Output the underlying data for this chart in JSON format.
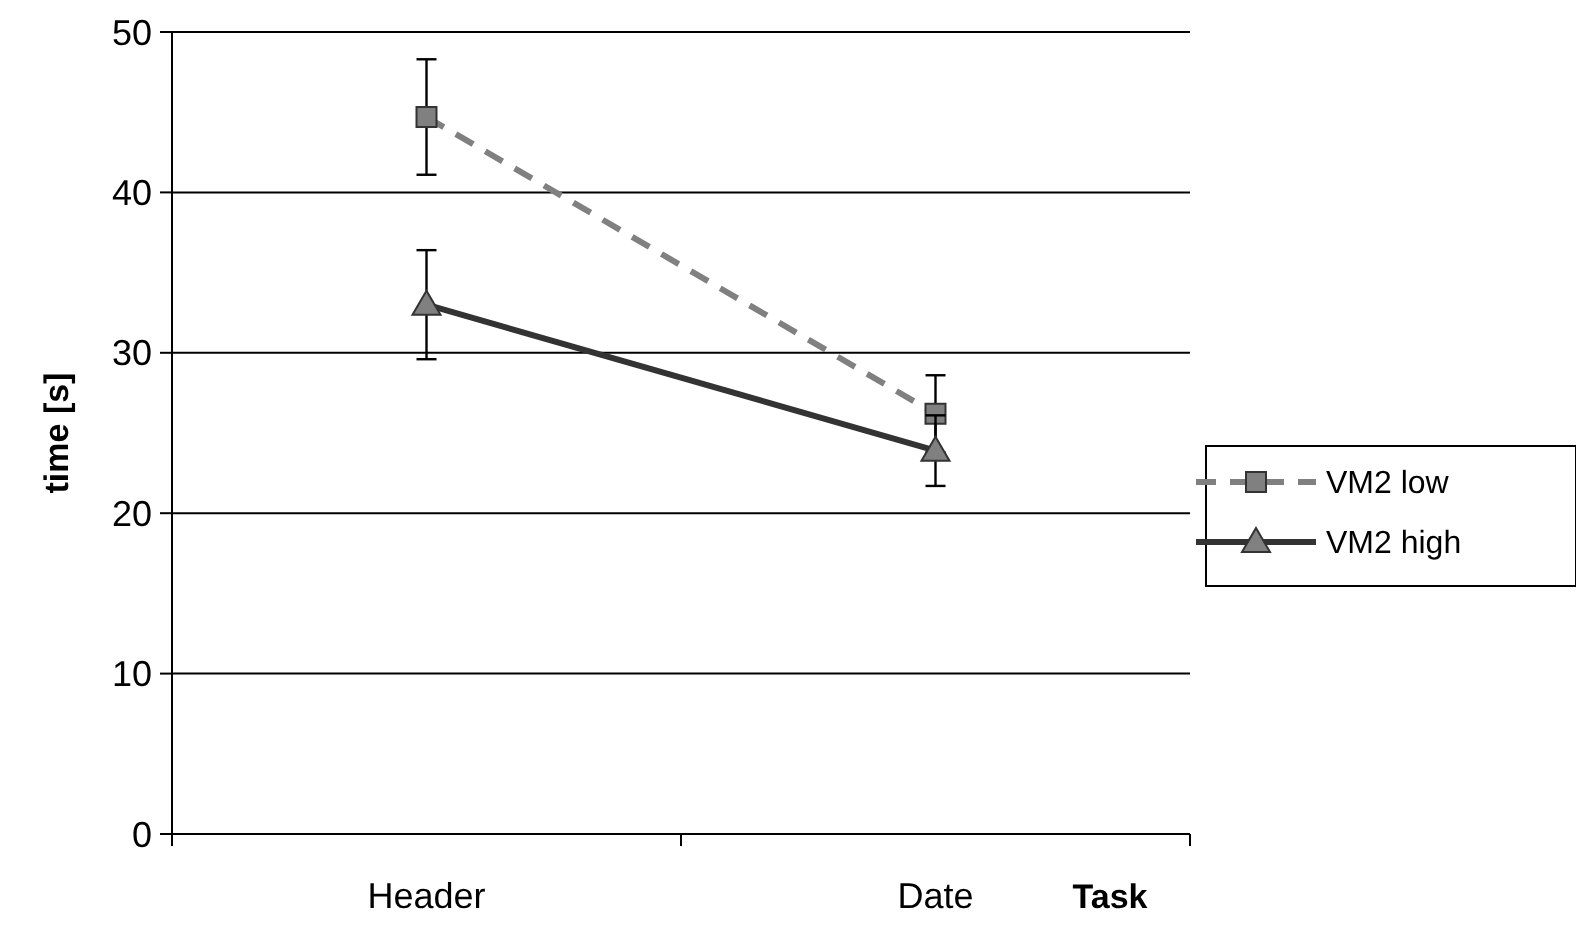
{
  "chart_data": {
    "type": "line",
    "xlabel": "Task",
    "ylabel": "time [s]",
    "categories": [
      "Header",
      "Date"
    ],
    "series": [
      {
        "name": "VM2 low",
        "color": "#808080",
        "values": [
          44.7,
          26.2
        ],
        "errors": [
          3.6,
          2.4
        ],
        "marker": "square",
        "line_style": "dashed"
      },
      {
        "name": "VM2 high",
        "color": "#333333",
        "values": [
          33.0,
          23.9
        ],
        "errors": [
          3.4,
          2.2
        ],
        "marker": "triangle",
        "line_style": "solid"
      }
    ],
    "ylim": [
      0,
      50
    ],
    "yticks": [
      0,
      10,
      20,
      30,
      40,
      50
    ],
    "grid": "y",
    "legend": "right"
  }
}
